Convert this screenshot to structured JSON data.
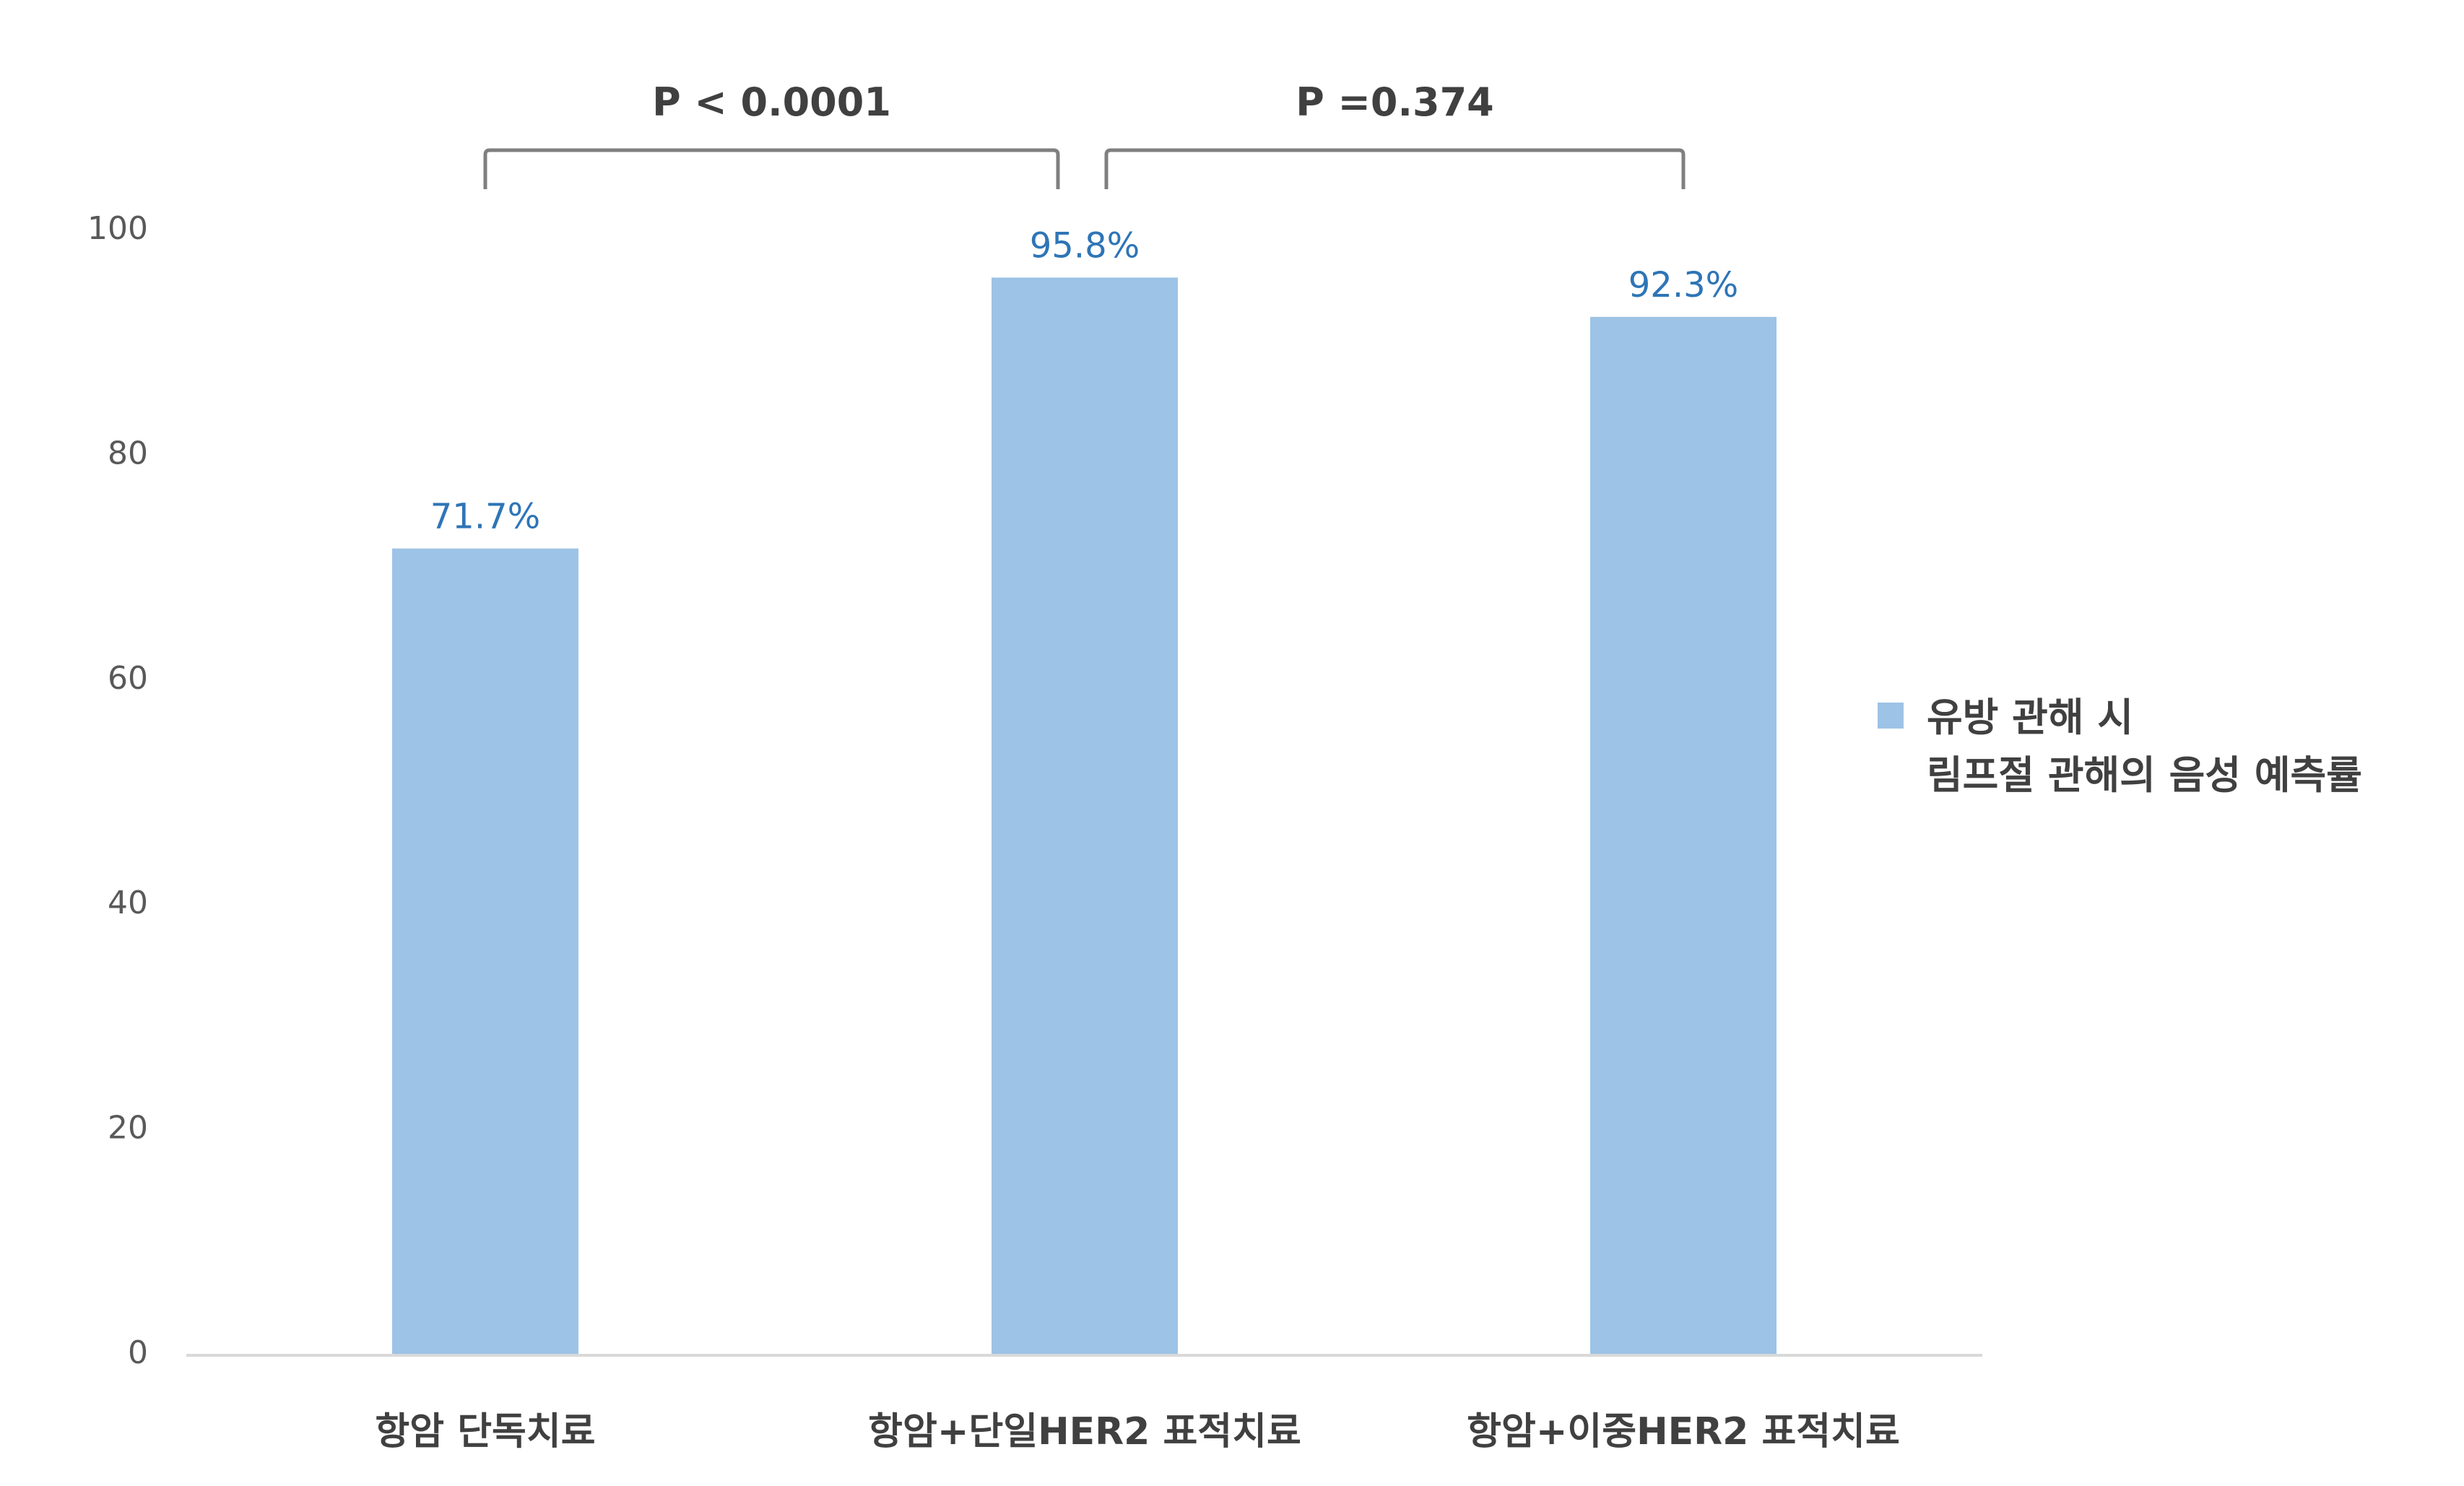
{
  "chart_data": {
    "type": "bar",
    "categories": [
      "항암 단독치료",
      "항암+단일HER2 표적치료",
      "항암+이중HER2 표적치료"
    ],
    "series": [
      {
        "name": "유방 관해 시 림프절 관해의 음성 예측률",
        "name_lines": [
          "유방 관해 시",
          "림프절 관해의 음성 예측률"
        ],
        "values": [
          71.7,
          95.8,
          92.3
        ],
        "labels": [
          "71.7%",
          "95.8%",
          "92.3%"
        ],
        "color": "#9dc3e6"
      }
    ],
    "ylim": [
      0,
      100
    ],
    "yticks": [
      0,
      20,
      40,
      60,
      80,
      100
    ],
    "ytick_labels": [
      "0",
      "20",
      "40",
      "60",
      "80",
      "100"
    ],
    "legend_position": "right",
    "grid": false,
    "annotations": [
      {
        "text": "P < 0.0001",
        "from": 0,
        "to": 1
      },
      {
        "text": "P =0.374",
        "from": 1,
        "to": 2
      }
    ],
    "colors": {
      "bar": "#9dc3e6",
      "data_label": "#2e75b6",
      "axis": "#d9d9d9",
      "bracket": "#7f7f7f",
      "text": "#404040"
    }
  }
}
